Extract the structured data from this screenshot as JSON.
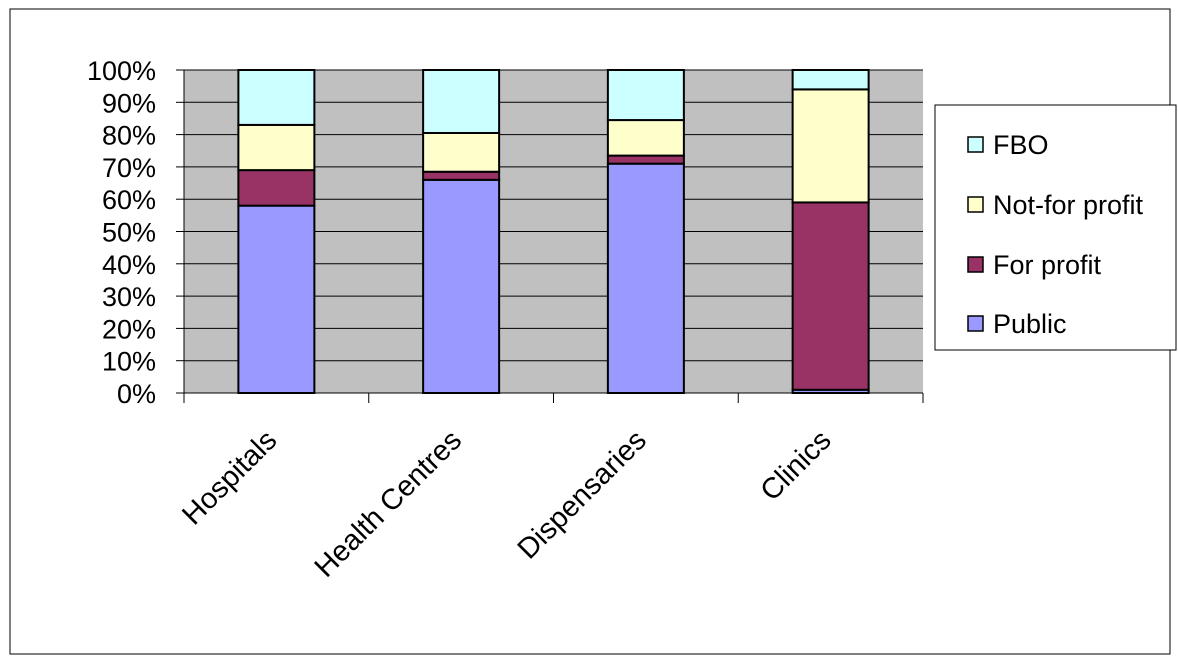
{
  "chart_data": {
    "type": "bar",
    "stacked": true,
    "categories": [
      "Hospitals",
      "Health Centres",
      "Dispensaries",
      "Clinics"
    ],
    "series": [
      {
        "name": "Public",
        "values": [
          58,
          66,
          71,
          1
        ],
        "color": "#9999ff"
      },
      {
        "name": "For profit",
        "values": [
          11,
          2.5,
          2.5,
          58
        ],
        "color": "#993366"
      },
      {
        "name": "Not-for profit",
        "values": [
          14,
          12,
          11,
          35
        ],
        "color": "#ffffcc"
      },
      {
        "name": "FBO",
        "values": [
          17,
          19.5,
          15.5,
          6
        ],
        "color": "#ccffff"
      }
    ],
    "title": "",
    "xlabel": "",
    "ylabel": "",
    "ylim": [
      0,
      100
    ],
    "yticks": [
      "0%",
      "10%",
      "20%",
      "30%",
      "40%",
      "50%",
      "60%",
      "70%",
      "80%",
      "90%",
      "100%"
    ],
    "grid": true,
    "plot_background": "#c0c0c0",
    "legend_position": "right"
  }
}
